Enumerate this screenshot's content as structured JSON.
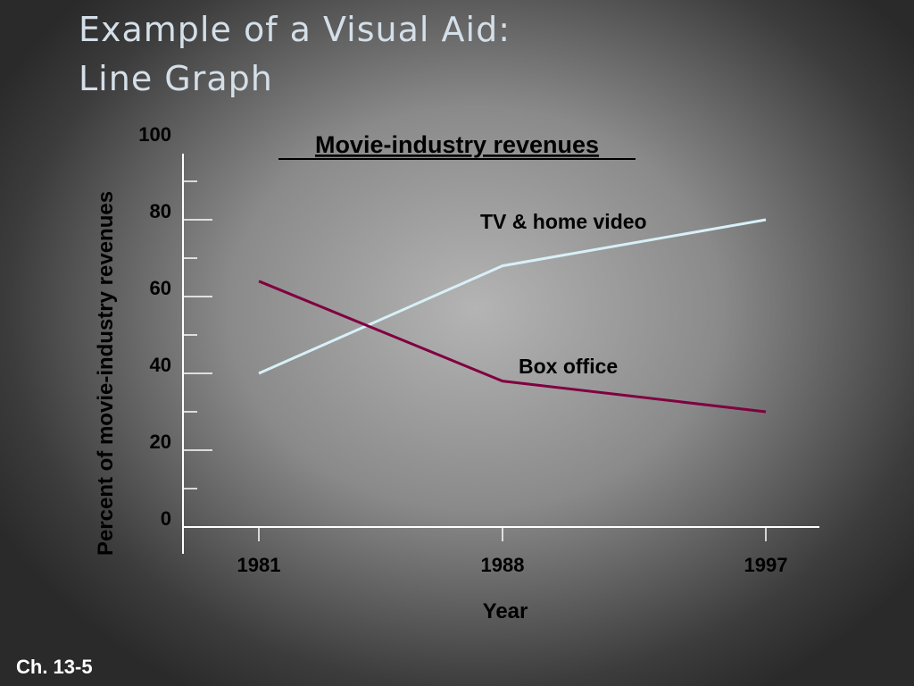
{
  "slide": {
    "title_lines": [
      "Example of a Visual Aid:",
      "Line Graph"
    ],
    "footer": "Ch. 13-5"
  },
  "chart_data": {
    "type": "line",
    "title": "Movie-industry revenues",
    "xlabel": "Year",
    "ylabel": "Percent of movie-industry revenues",
    "categories": [
      "1981",
      "1988",
      "1997"
    ],
    "series": [
      {
        "name": "TV & home video",
        "color": "#d8f0f8",
        "values": [
          40,
          68,
          80
        ]
      },
      {
        "name": "Box office",
        "color": "#800040",
        "values": [
          64,
          38,
          30
        ]
      }
    ],
    "ylim": [
      0,
      100
    ],
    "yticks": [
      0,
      20,
      40,
      60,
      80,
      100
    ],
    "yminorticks": [
      10,
      30,
      50,
      70,
      90
    ]
  }
}
